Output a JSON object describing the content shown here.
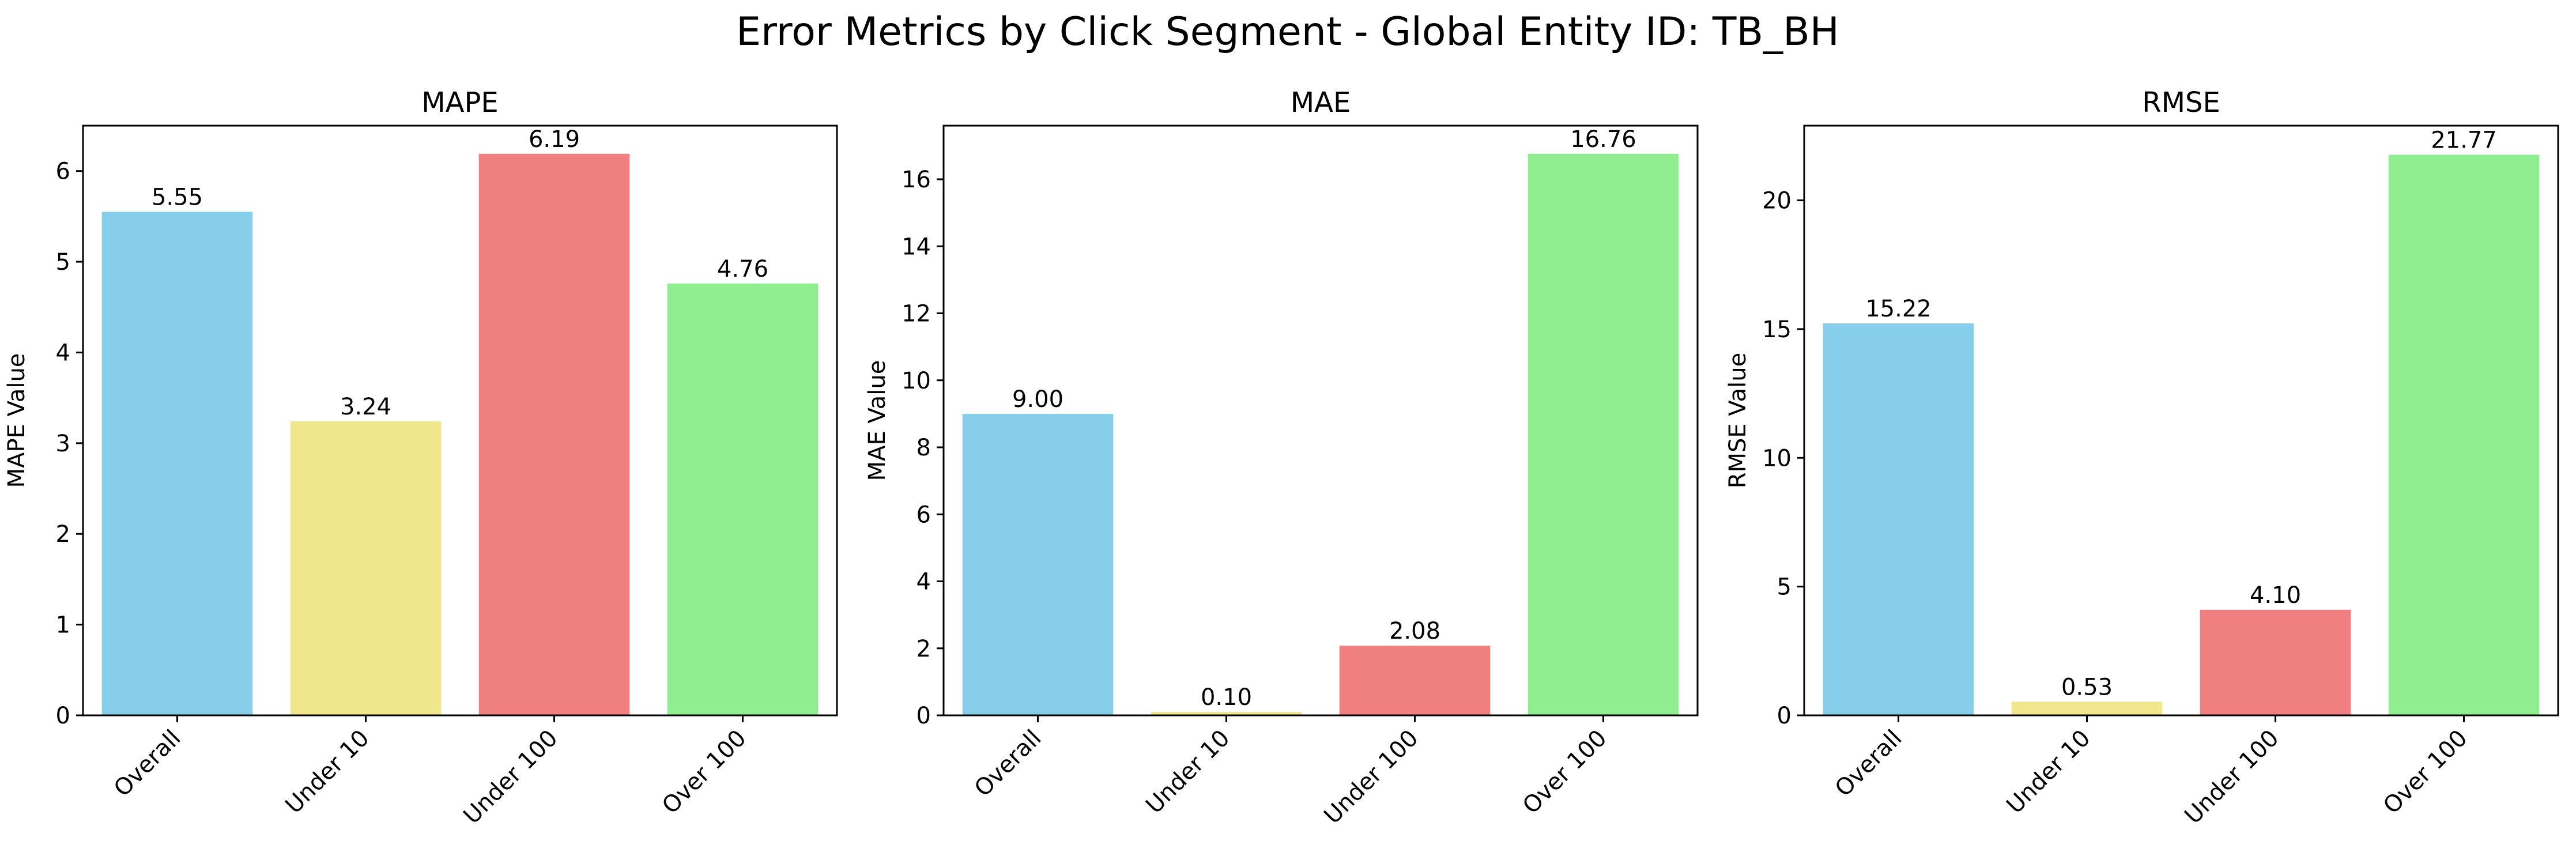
{
  "figure": {
    "title": "Error Metrics by Click Segment - Global Entity ID: TB_BH"
  },
  "chart_data": [
    {
      "type": "bar",
      "title": "MAPE",
      "xlabel": "",
      "ylabel": "MAPE Value",
      "categories": [
        "Overall",
        "Under 10",
        "Under 100",
        "Over 100"
      ],
      "values": [
        5.55,
        3.24,
        6.19,
        4.76
      ],
      "value_labels": [
        "5.55",
        "3.24",
        "6.19",
        "4.76"
      ],
      "colors": [
        "#87ceeb",
        "#f0e68c",
        "#f08080",
        "#90ee90"
      ],
      "ylim": [
        0,
        6.5
      ],
      "yticks": [
        0,
        1,
        2,
        3,
        4,
        5,
        6
      ],
      "grid": false,
      "legend": "none"
    },
    {
      "type": "bar",
      "title": "MAE",
      "xlabel": "",
      "ylabel": "MAE Value",
      "categories": [
        "Overall",
        "Under 10",
        "Under 100",
        "Over 100"
      ],
      "values": [
        9.0,
        0.1,
        2.08,
        16.76
      ],
      "value_labels": [
        "9.00",
        "0.10",
        "2.08",
        "16.76"
      ],
      "colors": [
        "#87ceeb",
        "#f0e68c",
        "#f08080",
        "#90ee90"
      ],
      "ylim": [
        0,
        17.6
      ],
      "yticks": [
        0,
        2,
        4,
        6,
        8,
        10,
        12,
        14,
        16
      ],
      "grid": false,
      "legend": "none"
    },
    {
      "type": "bar",
      "title": "RMSE",
      "xlabel": "",
      "ylabel": "RMSE Value",
      "categories": [
        "Overall",
        "Under 10",
        "Under 100",
        "Over 100"
      ],
      "values": [
        15.22,
        0.53,
        4.1,
        21.77
      ],
      "value_labels": [
        "15.22",
        "0.53",
        "4.10",
        "21.77"
      ],
      "colors": [
        "#87ceeb",
        "#f0e68c",
        "#f08080",
        "#90ee90"
      ],
      "ylim": [
        0,
        22.9
      ],
      "yticks": [
        0,
        5,
        10,
        15,
        20
      ],
      "grid": false,
      "legend": "none"
    }
  ]
}
